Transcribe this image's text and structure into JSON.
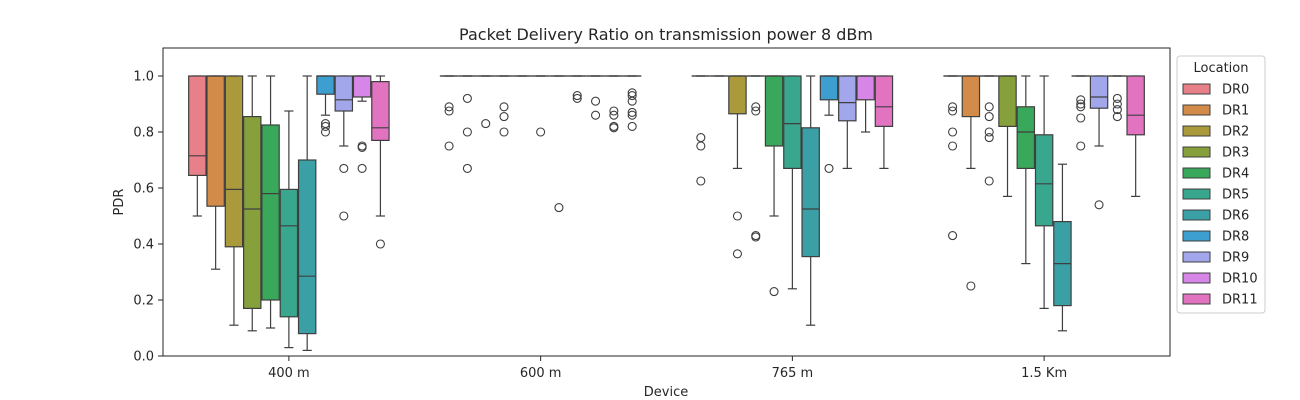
{
  "chart_data": {
    "type": "box",
    "title": "Packet Delivery Ratio on transmission power 8 dBm",
    "xlabel": "Device",
    "ylabel": "PDR",
    "ylim": [
      0,
      1.1
    ],
    "yticks": [
      0.0,
      0.2,
      0.4,
      0.6,
      0.8,
      1.0
    ],
    "ytick_labels": [
      "0.0",
      "0.2",
      "0.4",
      "0.6",
      "0.8",
      "1.0"
    ],
    "categories": [
      "400 m",
      "600 m",
      "765 m",
      "1.5 Km"
    ],
    "legend": {
      "title": "Location",
      "placement": "outside right"
    },
    "series": [
      {
        "name": "DR0",
        "color": "#e8808a",
        "boxes": [
          {
            "whislo": 0.5,
            "q1": 0.645,
            "med": 0.715,
            "q3": 1.0,
            "whishi": 1.0,
            "fliers": []
          },
          {
            "whislo": 1.0,
            "q1": 1.0,
            "med": 1.0,
            "q3": 1.0,
            "whishi": 1.0,
            "fliers": [
              0.89,
              0.875,
              0.75
            ]
          },
          {
            "whislo": 1.0,
            "q1": 1.0,
            "med": 1.0,
            "q3": 1.0,
            "whishi": 1.0,
            "fliers": [
              0.78,
              0.75,
              0.625
            ]
          },
          {
            "whislo": 1.0,
            "q1": 1.0,
            "med": 1.0,
            "q3": 1.0,
            "whishi": 1.0,
            "fliers": [
              0.89,
              0.875,
              0.8,
              0.75,
              0.43
            ]
          }
        ]
      },
      {
        "name": "DR1",
        "color": "#d38b4a",
        "boxes": [
          {
            "whislo": 0.31,
            "q1": 0.535,
            "med": 1.0,
            "q3": 1.0,
            "whishi": 1.0,
            "fliers": []
          },
          {
            "whislo": 1.0,
            "q1": 1.0,
            "med": 1.0,
            "q3": 1.0,
            "whishi": 1.0,
            "fliers": [
              0.92,
              0.8,
              0.67
            ]
          },
          {
            "whislo": 1.0,
            "q1": 1.0,
            "med": 1.0,
            "q3": 1.0,
            "whishi": 1.0,
            "fliers": []
          },
          {
            "whislo": 0.67,
            "q1": 0.855,
            "med": 1.0,
            "q3": 1.0,
            "whishi": 1.0,
            "fliers": [
              0.25
            ]
          }
        ]
      },
      {
        "name": "DR2",
        "color": "#ab9a3c",
        "boxes": [
          {
            "whislo": 0.11,
            "q1": 0.39,
            "med": 0.595,
            "q3": 1.0,
            "whishi": 1.0,
            "fliers": []
          },
          {
            "whislo": 1.0,
            "q1": 1.0,
            "med": 1.0,
            "q3": 1.0,
            "whishi": 1.0,
            "fliers": [
              0.83
            ]
          },
          {
            "whislo": 0.67,
            "q1": 0.865,
            "med": 1.0,
            "q3": 1.0,
            "whishi": 1.0,
            "fliers": [
              0.5,
              0.365
            ]
          },
          {
            "whislo": 1.0,
            "q1": 1.0,
            "med": 1.0,
            "q3": 1.0,
            "whishi": 1.0,
            "fliers": [
              0.89,
              0.855,
              0.8,
              0.78,
              0.625
            ]
          }
        ]
      },
      {
        "name": "DR3",
        "color": "#86a13c",
        "boxes": [
          {
            "whislo": 0.09,
            "q1": 0.17,
            "med": 0.525,
            "q3": 0.855,
            "whishi": 1.0,
            "fliers": []
          },
          {
            "whislo": 1.0,
            "q1": 1.0,
            "med": 1.0,
            "q3": 1.0,
            "whishi": 1.0,
            "fliers": [
              0.89,
              0.855,
              0.8
            ]
          },
          {
            "whislo": 1.0,
            "q1": 1.0,
            "med": 1.0,
            "q3": 1.0,
            "whishi": 1.0,
            "fliers": [
              0.89,
              0.875,
              0.43,
              0.425
            ]
          },
          {
            "whislo": 0.57,
            "q1": 0.82,
            "med": 1.0,
            "q3": 1.0,
            "whishi": 1.0,
            "fliers": []
          }
        ]
      },
      {
        "name": "DR4",
        "color": "#3aa85b",
        "boxes": [
          {
            "whislo": 0.1,
            "q1": 0.2,
            "med": 0.58,
            "q3": 0.825,
            "whishi": 1.0,
            "fliers": []
          },
          {
            "whislo": 1.0,
            "q1": 1.0,
            "med": 1.0,
            "q3": 1.0,
            "whishi": 1.0,
            "fliers": []
          },
          {
            "whislo": 0.5,
            "q1": 0.75,
            "med": 1.0,
            "q3": 1.0,
            "whishi": 1.0,
            "fliers": [
              0.23
            ]
          },
          {
            "whislo": 0.33,
            "q1": 0.67,
            "med": 0.8,
            "q3": 0.89,
            "whishi": 1.0,
            "fliers": []
          }
        ]
      },
      {
        "name": "DR5",
        "color": "#39a68e",
        "boxes": [
          {
            "whislo": 0.03,
            "q1": 0.14,
            "med": 0.465,
            "q3": 0.595,
            "whishi": 0.875,
            "fliers": []
          },
          {
            "whislo": 1.0,
            "q1": 1.0,
            "med": 1.0,
            "q3": 1.0,
            "whishi": 1.0,
            "fliers": [
              0.8
            ]
          },
          {
            "whislo": 0.24,
            "q1": 0.67,
            "med": 0.83,
            "q3": 1.0,
            "whishi": 1.0,
            "fliers": []
          },
          {
            "whislo": 0.17,
            "q1": 0.465,
            "med": 0.615,
            "q3": 0.79,
            "whishi": 1.0,
            "fliers": []
          }
        ]
      },
      {
        "name": "DR6",
        "color": "#3aa0a5",
        "boxes": [
          {
            "whislo": 0.02,
            "q1": 0.08,
            "med": 0.285,
            "q3": 0.7,
            "whishi": 1.0,
            "fliers": []
          },
          {
            "whislo": 1.0,
            "q1": 1.0,
            "med": 1.0,
            "q3": 1.0,
            "whishi": 1.0,
            "fliers": [
              0.53
            ]
          },
          {
            "whislo": 0.11,
            "q1": 0.355,
            "med": 0.525,
            "q3": 0.815,
            "whishi": 1.0,
            "fliers": []
          },
          {
            "whislo": 0.09,
            "q1": 0.18,
            "med": 0.33,
            "q3": 0.48,
            "whishi": 0.685,
            "fliers": []
          }
        ]
      },
      {
        "name": "DR8",
        "color": "#3d9fcf",
        "boxes": [
          {
            "whislo": 0.86,
            "q1": 0.935,
            "med": 1.0,
            "q3": 1.0,
            "whishi": 1.0,
            "fliers": [
              0.83,
              0.82,
              0.8
            ]
          },
          {
            "whislo": 1.0,
            "q1": 1.0,
            "med": 1.0,
            "q3": 1.0,
            "whishi": 1.0,
            "fliers": [
              0.93,
              0.92
            ]
          },
          {
            "whislo": 0.86,
            "q1": 0.915,
            "med": 1.0,
            "q3": 1.0,
            "whishi": 1.0,
            "fliers": [
              0.67
            ]
          },
          {
            "whislo": 1.0,
            "q1": 1.0,
            "med": 1.0,
            "q3": 1.0,
            "whishi": 1.0,
            "fliers": [
              0.915,
              0.9,
              0.89,
              0.85,
              0.75
            ]
          }
        ]
      },
      {
        "name": "DR9",
        "color": "#a2a7ec",
        "boxes": [
          {
            "whislo": 0.75,
            "q1": 0.875,
            "med": 0.915,
            "q3": 1.0,
            "whishi": 1.0,
            "fliers": [
              0.67,
              0.5
            ]
          },
          {
            "whislo": 1.0,
            "q1": 1.0,
            "med": 1.0,
            "q3": 1.0,
            "whishi": 1.0,
            "fliers": [
              0.91,
              0.86
            ]
          },
          {
            "whislo": 0.67,
            "q1": 0.84,
            "med": 0.905,
            "q3": 1.0,
            "whishi": 1.0,
            "fliers": []
          },
          {
            "whislo": 0.75,
            "q1": 0.885,
            "med": 0.925,
            "q3": 1.0,
            "whishi": 1.0,
            "fliers": [
              0.54
            ]
          }
        ]
      },
      {
        "name": "DR10",
        "color": "#d686e6",
        "boxes": [
          {
            "whislo": 0.91,
            "q1": 0.925,
            "med": 1.0,
            "q3": 1.0,
            "whishi": 1.0,
            "fliers": [
              0.75,
              0.745,
              0.67
            ]
          },
          {
            "whislo": 1.0,
            "q1": 1.0,
            "med": 1.0,
            "q3": 1.0,
            "whishi": 1.0,
            "fliers": [
              0.875,
              0.86,
              0.82,
              0.815
            ]
          },
          {
            "whislo": 0.8,
            "q1": 0.915,
            "med": 1.0,
            "q3": 1.0,
            "whishi": 1.0,
            "fliers": []
          },
          {
            "whislo": 1.0,
            "q1": 1.0,
            "med": 1.0,
            "q3": 1.0,
            "whishi": 1.0,
            "fliers": [
              0.92,
              0.9,
              0.88,
              0.855
            ]
          }
        ]
      },
      {
        "name": "DR11",
        "color": "#e173c1",
        "boxes": [
          {
            "whislo": 0.5,
            "q1": 0.77,
            "med": 0.815,
            "q3": 0.98,
            "whishi": 1.0,
            "fliers": [
              0.4
            ]
          },
          {
            "whislo": 1.0,
            "q1": 1.0,
            "med": 1.0,
            "q3": 1.0,
            "whishi": 1.0,
            "fliers": [
              0.94,
              0.93,
              0.91,
              0.87,
              0.86,
              0.82
            ]
          },
          {
            "whislo": 0.67,
            "q1": 0.82,
            "med": 0.89,
            "q3": 1.0,
            "whishi": 1.0,
            "fliers": []
          },
          {
            "whislo": 0.57,
            "q1": 0.79,
            "med": 0.86,
            "q3": 1.0,
            "whishi": 1.0,
            "fliers": []
          }
        ]
      }
    ]
  }
}
